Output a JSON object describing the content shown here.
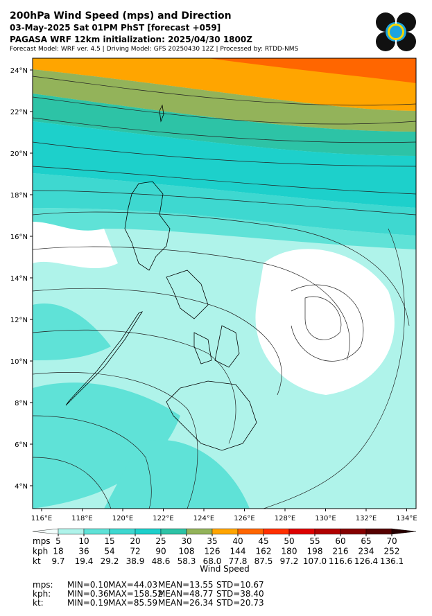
{
  "header": {
    "title": "200hPa Wind Speed (mps) and Direction",
    "subtitle": "03-May-2025 Sat 01PM PhST [forecast +059]",
    "init": "PAGASA WRF 12km initialization: 2025/04/30 1800Z",
    "info": "Forecast Model: WRF ver. 4.5 | Driving Model: GFS 20250430 12Z | Processed by: RTDD-NMS"
  },
  "map": {
    "lat_labels": [
      "24°N",
      "22°N",
      "20°N",
      "18°N",
      "16°N",
      "14°N",
      "12°N",
      "10°N",
      "8°N",
      "6°N",
      "4°N"
    ],
    "lon_labels": [
      "116°E",
      "118°E",
      "120°E",
      "122°E",
      "124°E",
      "126°E",
      "128°E",
      "130°E",
      "132°E",
      "134°E"
    ]
  },
  "colorbar": {
    "colors": [
      "#f2fdfb",
      "#aff3ea",
      "#5fe2d7",
      "#3ed8d0",
      "#1dd0cb",
      "#2dc3a6",
      "#93b35a",
      "#ffa500",
      "#ff6600",
      "#ff3000",
      "#dd0000",
      "#b00000",
      "#850000",
      "#560000",
      "#260000"
    ],
    "rows": [
      {
        "unit": "mps",
        "values": [
          "5",
          "10",
          "15",
          "20",
          "25",
          "30",
          "35",
          "40",
          "45",
          "50",
          "55",
          "60",
          "65",
          "70"
        ]
      },
      {
        "unit": "kph",
        "values": [
          "18",
          "36",
          "54",
          "72",
          "90",
          "108",
          "126",
          "144",
          "162",
          "180",
          "198",
          "216",
          "234",
          "252"
        ]
      },
      {
        "unit": "kt",
        "values": [
          "9.7",
          "19.4",
          "29.2",
          "38.9",
          "48.6",
          "58.3",
          "68.0",
          "77.8",
          "87.5",
          "97.2",
          "107.0",
          "116.6",
          "126.4",
          "136.1"
        ]
      }
    ],
    "label": "Wind Speed"
  },
  "stats": [
    {
      "unit": "mps:",
      "items": [
        "MIN=0.10",
        "MAX=44.03",
        "MEAN=13.55",
        "STD=10.67"
      ]
    },
    {
      "unit": "kph:",
      "items": [
        "MIN=0.36",
        "MAX=158.52",
        "MEAN=48.77",
        "STD=38.40"
      ]
    },
    {
      "unit": "kt:",
      "items": [
        "MIN=0.19",
        "MAX=85.59",
        "MEAN=26.34",
        "STD=20.73"
      ]
    }
  ]
}
